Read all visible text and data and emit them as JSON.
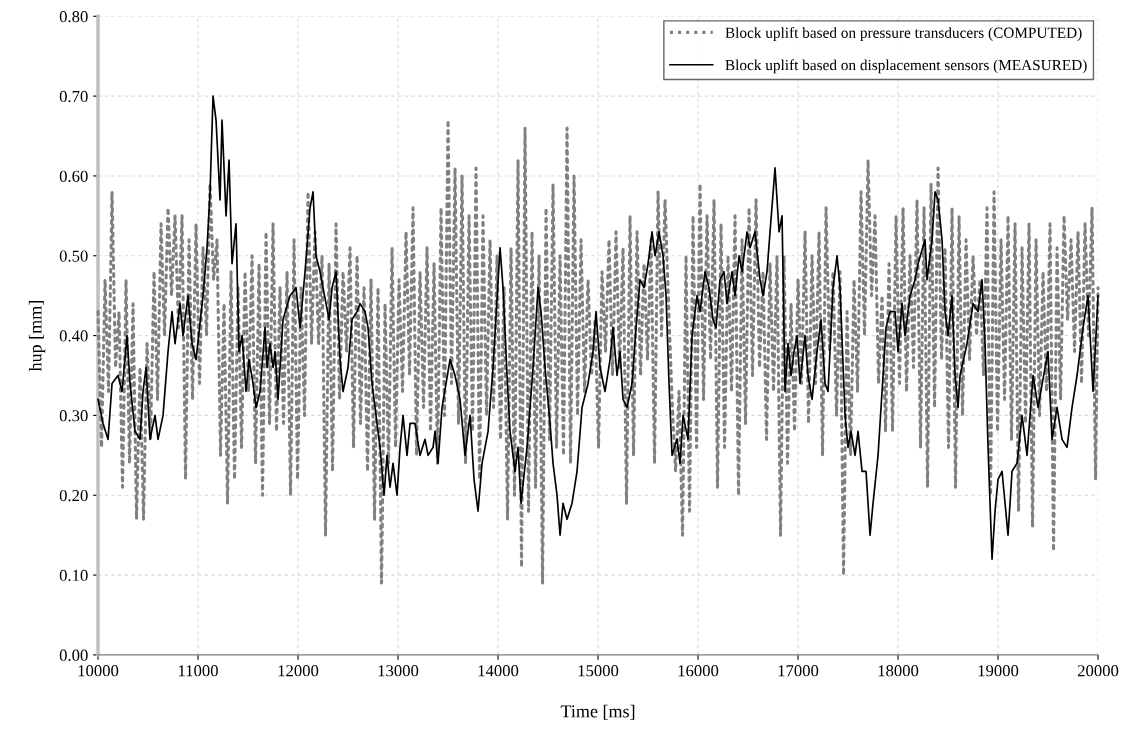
{
  "chart_data": {
    "type": "line",
    "xlabel": "Time [ms]",
    "ylabel": "hup [mm]",
    "xlim": [
      10000,
      20000
    ],
    "xticks": [
      10000,
      11000,
      12000,
      13000,
      14000,
      15000,
      16000,
      17000,
      18000,
      19000,
      20000
    ],
    "ylim": [
      0,
      0.8
    ],
    "yticks": [
      {
        "value": 0,
        "label": "0.00"
      },
      {
        "value": 0.1,
        "label": "0.10"
      },
      {
        "value": 0.2,
        "label": "0.20"
      },
      {
        "value": 0.3,
        "label": "0.30"
      },
      {
        "value": 0.4,
        "label": "0.40"
      },
      {
        "value": 0.5,
        "label": "0.50"
      },
      {
        "value": 0.6,
        "label": "0.60"
      },
      {
        "value": 0.7,
        "label": "0.70"
      },
      {
        "value": 0.8,
        "label": "0.80"
      }
    ],
    "grid": true,
    "legend": "top right",
    "marker": "none",
    "series": [
      {
        "name": "Block uplift based on pressure transducers (COMPUTED)",
        "color": "#808080",
        "line_style": "dotted",
        "x": [
          10000,
          10035,
          10070,
          10105,
          10140,
          10175,
          10210,
          10245,
          10280,
          10315,
          10350,
          10385,
          10420,
          10455,
          10490,
          10525,
          10560,
          10595,
          10630,
          10665,
          10700,
          10735,
          10770,
          10805,
          10840,
          10875,
          10910,
          10945,
          10980,
          11015,
          11050,
          11085,
          11120,
          11155,
          11190,
          11225,
          11260,
          11295,
          11330,
          11365,
          11400,
          11435,
          11470,
          11505,
          11540,
          11575,
          11610,
          11645,
          11680,
          11715,
          11750,
          11785,
          11820,
          11855,
          11890,
          11925,
          11960,
          11995,
          12030,
          12065,
          12100,
          12135,
          12170,
          12205,
          12240,
          12275,
          12310,
          12345,
          12380,
          12415,
          12450,
          12485,
          12520,
          12555,
          12590,
          12625,
          12660,
          12695,
          12730,
          12765,
          12800,
          12835,
          12870,
          12905,
          12940,
          12975,
          13010,
          13045,
          13080,
          13115,
          13150,
          13185,
          13220,
          13255,
          13290,
          13325,
          13360,
          13395,
          13430,
          13465,
          13500,
          13535,
          13570,
          13605,
          13640,
          13675,
          13710,
          13745,
          13780,
          13815,
          13850,
          13885,
          13920,
          13955,
          13990,
          14025,
          14060,
          14095,
          14130,
          14165,
          14200,
          14235,
          14270,
          14305,
          14340,
          14375,
          14410,
          14445,
          14480,
          14515,
          14550,
          14585,
          14620,
          14655,
          14690,
          14725,
          14760,
          14795,
          14830,
          14865,
          14900,
          14935,
          14970,
          15005,
          15040,
          15075,
          15110,
          15145,
          15180,
          15215,
          15250,
          15285,
          15320,
          15355,
          15390,
          15425,
          15460,
          15495,
          15530,
          15565,
          15600,
          15635,
          15670,
          15705,
          15740,
          15775,
          15810,
          15845,
          15880,
          15915,
          15950,
          15985,
          16020,
          16055,
          16090,
          16125,
          16160,
          16195,
          16230,
          16265,
          16300,
          16335,
          16370,
          16405,
          16440,
          16475,
          16510,
          16545,
          16580,
          16615,
          16650,
          16685,
          16720,
          16755,
          16790,
          16825,
          16860,
          16895,
          16930,
          16965,
          17000,
          17035,
          17070,
          17105,
          17140,
          17175,
          17210,
          17245,
          17280,
          17315,
          17350,
          17385,
          17420,
          17455,
          17490,
          17525,
          17560,
          17595,
          17630,
          17665,
          17700,
          17735,
          17770,
          17805,
          17840,
          17875,
          17910,
          17945,
          17980,
          18015,
          18050,
          18085,
          18120,
          18155,
          18190,
          18225,
          18260,
          18295,
          18330,
          18365,
          18400,
          18435,
          18470,
          18505,
          18540,
          18575,
          18610,
          18645,
          18680,
          18715,
          18750,
          18785,
          18820,
          18855,
          18890,
          18925,
          18960,
          18995,
          19030,
          19065,
          19100,
          19135,
          19170,
          19205,
          19240,
          19275,
          19310,
          19345,
          19380,
          19415,
          19450,
          19485,
          19520,
          19555,
          19590,
          19625,
          19660,
          19695,
          19730,
          19765,
          19800,
          19835,
          19870,
          19905,
          19940,
          19975,
          20000
        ],
        "values": [
          0.43,
          0.26,
          0.47,
          0.33,
          0.58,
          0.36,
          0.43,
          0.21,
          0.47,
          0.24,
          0.44,
          0.17,
          0.36,
          0.17,
          0.39,
          0.27,
          0.48,
          0.32,
          0.54,
          0.4,
          0.56,
          0.45,
          0.55,
          0.41,
          0.55,
          0.22,
          0.52,
          0.32,
          0.54,
          0.34,
          0.51,
          0.4,
          0.59,
          0.47,
          0.52,
          0.25,
          0.44,
          0.19,
          0.48,
          0.22,
          0.46,
          0.26,
          0.48,
          0.33,
          0.5,
          0.24,
          0.49,
          0.2,
          0.53,
          0.29,
          0.54,
          0.28,
          0.46,
          0.29,
          0.48,
          0.2,
          0.52,
          0.22,
          0.46,
          0.3,
          0.58,
          0.39,
          0.53,
          0.39,
          0.5,
          0.15,
          0.49,
          0.23,
          0.54,
          0.32,
          0.48,
          0.38,
          0.51,
          0.26,
          0.5,
          0.29,
          0.46,
          0.23,
          0.47,
          0.17,
          0.46,
          0.09,
          0.44,
          0.24,
          0.51,
          0.26,
          0.47,
          0.33,
          0.53,
          0.35,
          0.56,
          0.25,
          0.48,
          0.31,
          0.51,
          0.28,
          0.49,
          0.24,
          0.56,
          0.3,
          0.67,
          0.34,
          0.61,
          0.29,
          0.6,
          0.24,
          0.55,
          0.28,
          0.61,
          0.22,
          0.55,
          0.3,
          0.52,
          0.31,
          0.5,
          0.27,
          0.46,
          0.17,
          0.51,
          0.2,
          0.62,
          0.11,
          0.66,
          0.18,
          0.53,
          0.21,
          0.5,
          0.09,
          0.56,
          0.27,
          0.59,
          0.26,
          0.5,
          0.25,
          0.66,
          0.24,
          0.6,
          0.3,
          0.52,
          0.33,
          0.47,
          0.35,
          0.42,
          0.26,
          0.48,
          0.38,
          0.52,
          0.35,
          0.53,
          0.36,
          0.51,
          0.19,
          0.55,
          0.25,
          0.53,
          0.35,
          0.49,
          0.37,
          0.52,
          0.24,
          0.58,
          0.4,
          0.57,
          0.44,
          0.32,
          0.23,
          0.33,
          0.15,
          0.5,
          0.18,
          0.55,
          0.26,
          0.59,
          0.32,
          0.55,
          0.37,
          0.57,
          0.21,
          0.54,
          0.26,
          0.5,
          0.33,
          0.55,
          0.2,
          0.52,
          0.29,
          0.56,
          0.35,
          0.57,
          0.36,
          0.48,
          0.27,
          0.49,
          0.33,
          0.5,
          0.15,
          0.5,
          0.24,
          0.44,
          0.28,
          0.47,
          0.34,
          0.53,
          0.29,
          0.5,
          0.34,
          0.53,
          0.25,
          0.56,
          0.38,
          0.48,
          0.3,
          0.48,
          0.1,
          0.43,
          0.25,
          0.47,
          0.33,
          0.58,
          0.4,
          0.62,
          0.45,
          0.55,
          0.34,
          0.45,
          0.28,
          0.49,
          0.28,
          0.55,
          0.34,
          0.56,
          0.33,
          0.5,
          0.36,
          0.57,
          0.26,
          0.56,
          0.21,
          0.59,
          0.31,
          0.61,
          0.37,
          0.51,
          0.26,
          0.56,
          0.21,
          0.55,
          0.3,
          0.52,
          0.37,
          0.5,
          0.4,
          0.47,
          0.35,
          0.56,
          0.2,
          0.58,
          0.28,
          0.52,
          0.32,
          0.55,
          0.27,
          0.54,
          0.18,
          0.51,
          0.29,
          0.54,
          0.16,
          0.52,
          0.3,
          0.48,
          0.33,
          0.54,
          0.13,
          0.51,
          0.32,
          0.55,
          0.42,
          0.52,
          0.38,
          0.53,
          0.34,
          0.54,
          0.4,
          0.56,
          0.22,
          0.46
        ]
      },
      {
        "name": "Block uplift based on displacement sensors (MEASURED)",
        "color": "#000000",
        "line_style": "solid",
        "x": [
          10000,
          10050,
          10100,
          10140,
          10200,
          10240,
          10290,
          10320,
          10370,
          10420,
          10450,
          10480,
          10520,
          10570,
          10600,
          10650,
          10700,
          10740,
          10770,
          10820,
          10850,
          10900,
          10940,
          10980,
          11050,
          11090,
          11120,
          11150,
          11180,
          11220,
          11240,
          11280,
          11310,
          11340,
          11380,
          11410,
          11440,
          11480,
          11510,
          11550,
          11580,
          11620,
          11670,
          11690,
          11720,
          11750,
          11770,
          11800,
          11850,
          11920,
          11980,
          12020,
          12070,
          12120,
          12150,
          12180,
          12220,
          12280,
          12310,
          12340,
          12380,
          12420,
          12450,
          12500,
          12540,
          12590,
          12620,
          12670,
          12700,
          12740,
          12780,
          12820,
          12860,
          12890,
          12920,
          12950,
          12990,
          13020,
          13050,
          13090,
          13120,
          13170,
          13220,
          13270,
          13300,
          13350,
          13370,
          13400,
          13440,
          13520,
          13570,
          13620,
          13670,
          13720,
          13760,
          13800,
          13840,
          13900,
          13950,
          14020,
          14050,
          14090,
          14120,
          14170,
          14200,
          14230,
          14290,
          14350,
          14400,
          14430,
          14470,
          14520,
          14550,
          14590,
          14620,
          14650,
          14690,
          14740,
          14790,
          14840,
          14900,
          14950,
          14980,
          15020,
          15070,
          15120,
          15150,
          15190,
          15220,
          15250,
          15290,
          15340,
          15380,
          15420,
          15460,
          15500,
          15540,
          15570,
          15610,
          15650,
          15680,
          15710,
          15740,
          15790,
          15820,
          15850,
          15900,
          15940,
          15990,
          16020,
          16070,
          16110,
          16150,
          16180,
          16220,
          16260,
          16290,
          16340,
          16370,
          16410,
          16440,
          16490,
          16520,
          16570,
          16620,
          16650,
          16690,
          16720,
          16770,
          16810,
          16840,
          16870,
          16900,
          16930,
          16960,
          16990,
          17020,
          17070,
          17100,
          17140,
          17190,
          17230,
          17270,
          17300,
          17350,
          17390,
          17420,
          17470,
          17500,
          17530,
          17570,
          17600,
          17640,
          17680,
          17720,
          17750,
          17800,
          17840,
          17880,
          17920,
          17970,
          18000,
          18040,
          18070,
          18120,
          18170,
          18200,
          18270,
          18290,
          18340,
          18370,
          18400,
          18440,
          18470,
          18500,
          18540,
          18570,
          18600,
          18620,
          18690,
          18750,
          18800,
          18840,
          18870,
          18900,
          18940,
          18970,
          19000,
          19040,
          19070,
          19100,
          19140,
          19190,
          19240,
          19290,
          19350,
          19400,
          19470,
          19500,
          19540,
          19590,
          19640,
          19690,
          19740,
          19790,
          19850,
          19900,
          19950,
          20000
        ],
        "values": [
          0.32,
          0.29,
          0.27,
          0.34,
          0.35,
          0.33,
          0.4,
          0.34,
          0.28,
          0.27,
          0.33,
          0.36,
          0.27,
          0.3,
          0.27,
          0.3,
          0.38,
          0.43,
          0.39,
          0.44,
          0.4,
          0.45,
          0.39,
          0.37,
          0.45,
          0.51,
          0.58,
          0.7,
          0.67,
          0.57,
          0.67,
          0.55,
          0.62,
          0.49,
          0.54,
          0.38,
          0.4,
          0.33,
          0.37,
          0.34,
          0.31,
          0.33,
          0.41,
          0.36,
          0.39,
          0.36,
          0.38,
          0.32,
          0.42,
          0.45,
          0.46,
          0.41,
          0.48,
          0.56,
          0.58,
          0.5,
          0.48,
          0.44,
          0.42,
          0.46,
          0.48,
          0.37,
          0.33,
          0.36,
          0.42,
          0.43,
          0.44,
          0.43,
          0.41,
          0.34,
          0.3,
          0.26,
          0.2,
          0.25,
          0.21,
          0.24,
          0.2,
          0.26,
          0.3,
          0.25,
          0.29,
          0.29,
          0.25,
          0.27,
          0.25,
          0.26,
          0.28,
          0.24,
          0.31,
          0.37,
          0.35,
          0.32,
          0.25,
          0.3,
          0.22,
          0.18,
          0.24,
          0.28,
          0.36,
          0.51,
          0.46,
          0.35,
          0.28,
          0.23,
          0.26,
          0.19,
          0.26,
          0.36,
          0.46,
          0.43,
          0.36,
          0.29,
          0.24,
          0.2,
          0.15,
          0.19,
          0.17,
          0.19,
          0.23,
          0.31,
          0.34,
          0.38,
          0.43,
          0.36,
          0.33,
          0.37,
          0.41,
          0.35,
          0.38,
          0.32,
          0.31,
          0.34,
          0.41,
          0.47,
          0.46,
          0.49,
          0.53,
          0.5,
          0.53,
          0.5,
          0.45,
          0.34,
          0.25,
          0.27,
          0.24,
          0.3,
          0.27,
          0.4,
          0.45,
          0.43,
          0.48,
          0.46,
          0.42,
          0.41,
          0.47,
          0.48,
          0.44,
          0.48,
          0.45,
          0.5,
          0.48,
          0.53,
          0.51,
          0.53,
          0.47,
          0.45,
          0.48,
          0.53,
          0.61,
          0.53,
          0.55,
          0.33,
          0.39,
          0.35,
          0.38,
          0.4,
          0.34,
          0.4,
          0.35,
          0.32,
          0.38,
          0.42,
          0.34,
          0.33,
          0.46,
          0.5,
          0.46,
          0.3,
          0.26,
          0.28,
          0.25,
          0.28,
          0.23,
          0.23,
          0.15,
          0.19,
          0.25,
          0.33,
          0.41,
          0.43,
          0.43,
          0.38,
          0.44,
          0.4,
          0.45,
          0.47,
          0.49,
          0.52,
          0.47,
          0.52,
          0.58,
          0.57,
          0.52,
          0.43,
          0.4,
          0.45,
          0.35,
          0.31,
          0.35,
          0.39,
          0.44,
          0.43,
          0.47,
          0.39,
          0.26,
          0.12,
          0.18,
          0.22,
          0.23,
          0.19,
          0.15,
          0.23,
          0.24,
          0.3,
          0.25,
          0.35,
          0.31,
          0.36,
          0.38,
          0.27,
          0.31,
          0.27,
          0.26,
          0.31,
          0.35,
          0.41,
          0.45,
          0.33,
          0.45
        ]
      }
    ]
  }
}
